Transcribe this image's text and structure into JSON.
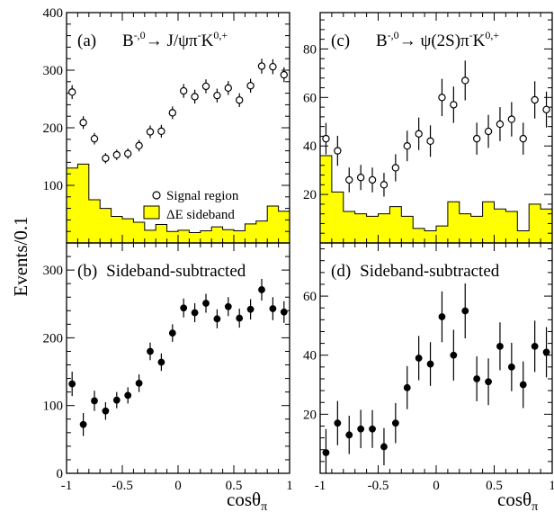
{
  "y_axis_title": "Events/0.1",
  "x_axis_title": "cosθ",
  "x_axis_title_sub": "π",
  "colors": {
    "sideband_fill": "#ffff00",
    "ink": "#000000",
    "background": "#ffffff"
  },
  "chart_data": [
    {
      "id": "a",
      "type": "scatter",
      "panel_label": "(a)",
      "decay_text": "B",
      "decay_sup": "-,0",
      "decay_arrow": "→ J/ψπ",
      "decay_sup2": "-",
      "decay_k": "K",
      "decay_sup3": "0,+",
      "xlim": [
        -1,
        1
      ],
      "ylim": [
        0,
        400
      ],
      "yticks": [
        "100",
        "200",
        "300",
        "400"
      ],
      "yticks_values": [
        100,
        200,
        300,
        400
      ],
      "legend": {
        "placement": "center-right",
        "entries": [
          "Signal region",
          "ΔE sideband"
        ]
      },
      "series": [
        {
          "name": "Signal region",
          "marker": "open-circle",
          "x": [
            -0.95,
            -0.85,
            -0.75,
            -0.65,
            -0.55,
            -0.45,
            -0.35,
            -0.25,
            -0.15,
            -0.05,
            0.05,
            0.15,
            0.25,
            0.35,
            0.45,
            0.55,
            0.65,
            0.75,
            0.85,
            0.95
          ],
          "y": [
            262,
            209,
            181,
            147,
            153,
            155,
            169,
            193,
            194,
            226,
            264,
            254,
            272,
            256,
            269,
            248,
            273,
            307,
            306,
            292
          ],
          "yerr": [
            12,
            11,
            10,
            9,
            9,
            9,
            10,
            11,
            11,
            11,
            12,
            12,
            12,
            12,
            12,
            12,
            12,
            13,
            13,
            13
          ]
        },
        {
          "name": "ΔE sideband",
          "style": "filled-histogram",
          "bin_edges": [
            -1,
            -0.9,
            -0.8,
            -0.7,
            -0.6,
            -0.5,
            -0.4,
            -0.3,
            -0.2,
            -0.1,
            0,
            0.1,
            0.2,
            0.3,
            0.4,
            0.5,
            0.6,
            0.7,
            0.8,
            0.9,
            1
          ],
          "values": [
            130,
            137,
            75,
            60,
            46,
            42,
            36,
            22,
            32,
            20,
            22,
            18,
            21,
            28,
            23,
            21,
            33,
            38,
            64,
            55
          ]
        }
      ]
    },
    {
      "id": "c",
      "type": "scatter",
      "panel_label": "(c)",
      "decay_text": "B",
      "decay_sup": "-,0",
      "decay_arrow": "→ ψ(2S)π",
      "decay_sup2": "-",
      "decay_k": "K",
      "decay_sup3": "0,+",
      "xlim": [
        -1,
        1
      ],
      "ylim": [
        0,
        95
      ],
      "yticks": [
        "20",
        "40",
        "60",
        "80"
      ],
      "yticks_values": [
        20,
        40,
        60,
        80
      ],
      "series": [
        {
          "name": "Signal region",
          "marker": "open-circle",
          "x": [
            -0.95,
            -0.85,
            -0.75,
            -0.65,
            -0.55,
            -0.45,
            -0.35,
            -0.25,
            -0.15,
            -0.05,
            0.05,
            0.15,
            0.25,
            0.35,
            0.45,
            0.55,
            0.65,
            0.75,
            0.85,
            0.95
          ],
          "y": [
            43,
            38,
            26,
            27,
            26,
            24,
            31,
            40,
            45,
            42,
            60,
            57,
            67,
            43,
            46,
            49,
            51,
            43,
            59,
            55
          ],
          "yerr": [
            6.5,
            6.2,
            5.1,
            5.2,
            5.1,
            4.9,
            5.6,
            6.3,
            6.7,
            6.5,
            7.7,
            7.5,
            8.2,
            6.6,
            6.8,
            7.0,
            7.1,
            6.6,
            7.7,
            7.4
          ]
        },
        {
          "name": "ΔE sideband",
          "style": "filled-histogram",
          "bin_edges": [
            -1,
            -0.9,
            -0.8,
            -0.7,
            -0.6,
            -0.5,
            -0.4,
            -0.3,
            -0.2,
            -0.1,
            0,
            0.1,
            0.2,
            0.3,
            0.4,
            0.5,
            0.6,
            0.7,
            0.8,
            0.9,
            1
          ],
          "values": [
            36,
            21,
            13,
            12,
            11,
            12,
            15,
            11,
            6,
            5,
            7,
            17,
            12,
            11,
            17,
            14,
            13,
            5,
            16,
            14
          ]
        }
      ]
    },
    {
      "id": "b",
      "type": "scatter",
      "panel_label": "(b)",
      "subtitle": "Sideband-subtracted",
      "xlim": [
        -1,
        1
      ],
      "ylim": [
        0,
        340
      ],
      "yticks": [
        "0",
        "100",
        "200",
        "300"
      ],
      "yticks_values": [
        0,
        100,
        200,
        300
      ],
      "xticks": [
        "-1",
        "-0.5",
        "0",
        "0.5",
        "1"
      ],
      "xticks_values": [
        -1,
        -0.5,
        0,
        0.5,
        1
      ],
      "series": [
        {
          "name": "Sideband-subtracted",
          "marker": "filled-circle",
          "x": [
            -0.95,
            -0.85,
            -0.75,
            -0.65,
            -0.55,
            -0.45,
            -0.35,
            -0.25,
            -0.15,
            -0.05,
            0.05,
            0.15,
            0.25,
            0.35,
            0.45,
            0.55,
            0.65,
            0.75,
            0.85,
            0.95
          ],
          "y": [
            132,
            72,
            107,
            92,
            108,
            115,
            133,
            180,
            164,
            207,
            244,
            237,
            251,
            228,
            246,
            229,
            242,
            271,
            243,
            238
          ],
          "yerr": [
            18,
            17,
            15,
            13,
            12,
            12,
            13,
            13,
            13,
            13,
            14,
            14,
            14,
            14,
            14,
            14,
            15,
            16,
            17,
            16
          ]
        }
      ]
    },
    {
      "id": "d",
      "type": "scatter",
      "panel_label": "(d)",
      "subtitle": "Sideband-subtracted",
      "xlim": [
        -1,
        1
      ],
      "ylim": [
        0,
        78
      ],
      "yticks": [
        "20",
        "40",
        "60"
      ],
      "yticks_values": [
        20,
        40,
        60
      ],
      "xticks": [
        "-1",
        "-0.5",
        "0",
        "0.5",
        "1"
      ],
      "xticks_values": [
        -1,
        -0.5,
        0,
        0.5,
        1
      ],
      "series": [
        {
          "name": "Sideband-subtracted",
          "marker": "filled-circle",
          "x": [
            -0.95,
            -0.85,
            -0.75,
            -0.65,
            -0.55,
            -0.45,
            -0.35,
            -0.25,
            -0.15,
            -0.05,
            0.05,
            0.15,
            0.25,
            0.35,
            0.45,
            0.55,
            0.65,
            0.75,
            0.85,
            0.95
          ],
          "y": [
            7,
            17,
            13,
            15,
            15,
            9,
            17,
            29,
            39,
            37,
            53,
            40,
            55,
            32,
            31,
            43,
            36,
            30,
            43,
            41
          ],
          "yerr": [
            8,
            7.5,
            6.5,
            6.5,
            6.4,
            6.3,
            6.8,
            7.3,
            7.5,
            7.4,
            8.6,
            8.6,
            9.3,
            7.6,
            7.9,
            8.1,
            8.2,
            7.9,
            8.7,
            8.5
          ]
        }
      ]
    }
  ]
}
